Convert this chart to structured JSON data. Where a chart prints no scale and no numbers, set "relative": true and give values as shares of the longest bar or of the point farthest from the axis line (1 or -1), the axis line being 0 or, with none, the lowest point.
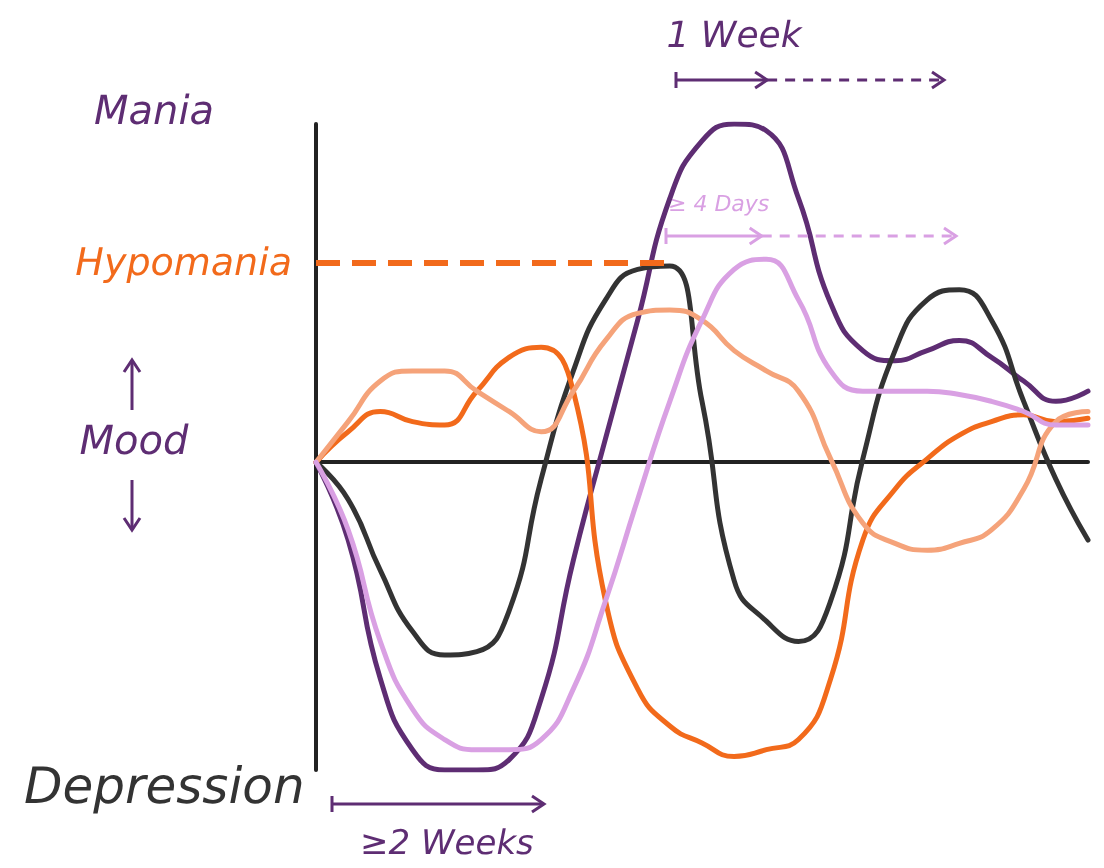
{
  "chart_data": {
    "type": "line",
    "relative": true,
    "categories": [
      null,
      null,
      null,
      null,
      null,
      null,
      null,
      null,
      null,
      null,
      null,
      null,
      null,
      null,
      null,
      null,
      null,
      null,
      null,
      null,
      null,
      null,
      null,
      null,
      null
    ],
    "series": [
      {
        "color": "#5e2d73",
        "values": [
          0,
          -0.23,
          -0.64,
          -0.85,
          -0.91,
          -0.91,
          -0.88,
          -0.7,
          -0.29,
          0.07,
          0.42,
          0.78,
          0.95,
          1,
          0.98,
          0.78,
          0.47,
          0.33,
          0.3,
          0.33,
          0.36,
          0.31,
          0.24,
          0.18,
          0.21
        ]
      },
      {
        "color": "#333333",
        "values": [
          0,
          -0.11,
          -0.32,
          -0.5,
          -0.57,
          -0.56,
          -0.44,
          -0.05,
          0.27,
          0.48,
          0.57,
          0.58,
          0.18,
          -0.35,
          -0.47,
          -0.53,
          -0.41,
          0.01,
          0.33,
          0.48,
          0.51,
          0.42,
          0.18,
          -0.05,
          -0.23
        ]
      },
      {
        "color": "#f26a1b",
        "values": [
          0,
          0.09,
          0.15,
          0.12,
          0.11,
          0.21,
          0.31,
          0.34,
          0.21,
          -0.41,
          -0.67,
          -0.78,
          -0.83,
          -0.87,
          -0.85,
          -0.82,
          -0.64,
          -0.23,
          -0.08,
          0.01,
          0.08,
          0.12,
          0.14,
          0.12,
          0.13
        ]
      },
      {
        "color": "#f5a37a",
        "values": [
          0,
          0.12,
          0.24,
          0.27,
          0.27,
          0.21,
          0.15,
          0.09,
          0.21,
          0.36,
          0.44,
          0.45,
          0.42,
          0.33,
          0.27,
          0.21,
          0.01,
          -0.18,
          -0.24,
          -0.26,
          -0.24,
          -0.2,
          -0.08,
          0.12,
          0.15
        ]
      },
      {
        "color": "#d9a0e3",
        "values": [
          0,
          -0.2,
          -0.53,
          -0.73,
          -0.82,
          -0.85,
          -0.85,
          -0.82,
          -0.67,
          -0.41,
          -0.11,
          0.18,
          0.42,
          0.57,
          0.6,
          0.48,
          0.27,
          0.21,
          0.21,
          0.21,
          0.2,
          0.18,
          0.15,
          0.11,
          0.11
        ]
      }
    ],
    "ref_lines": [
      {
        "axis": "y",
        "value": 0.59,
        "label": "Hypomania",
        "color": "#f26a1b",
        "line_style": "dashed"
      }
    ],
    "annotations": [
      "Mania",
      "Mood",
      "Depression",
      "1 Week",
      "≥ 4 Days",
      "≥2 Weeks"
    ]
  }
}
